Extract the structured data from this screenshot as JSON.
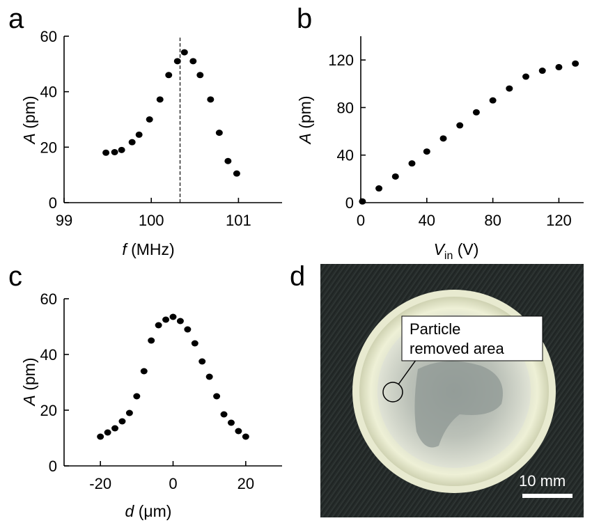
{
  "panels": {
    "a": "a",
    "b": "b",
    "c": "c",
    "d": "d"
  },
  "chart_data": [
    {
      "panel": "a",
      "type": "scatter",
      "xlabel_italic": "f",
      "xlabel_rest": " (MHz)",
      "ylabel_italic": "A",
      "ylabel_rest": " (pm)",
      "xlim": [
        99,
        101.5
      ],
      "ylim": [
        0,
        60
      ],
      "xticks": [
        99,
        100,
        101
      ],
      "xtick_labels": [
        "99",
        "100",
        "101"
      ],
      "yticks": [
        0,
        20,
        40,
        60
      ],
      "ytick_labels": [
        "0",
        "20",
        "40",
        "60"
      ],
      "vline_x": 100.33,
      "x": [
        99.48,
        99.58,
        99.66,
        99.78,
        99.86,
        99.98,
        100.1,
        100.2,
        100.3,
        100.38,
        100.48,
        100.56,
        100.68,
        100.78,
        100.88,
        100.98
      ],
      "y": [
        18,
        18.2,
        19,
        21.8,
        24.5,
        30,
        37.2,
        46,
        51,
        54.2,
        51,
        46,
        37.2,
        25.2,
        15,
        10.5
      ]
    },
    {
      "panel": "b",
      "type": "scatter",
      "xlabel_italic": "V",
      "xlabel_sub": "in",
      "xlabel_rest": " (V)",
      "ylabel_italic": "A",
      "ylabel_rest": " (pm)",
      "xlim": [
        0,
        135
      ],
      "ylim": [
        0,
        140
      ],
      "xticks": [
        0,
        40,
        80,
        120
      ],
      "xtick_labels": [
        "0",
        "40",
        "80",
        "120"
      ],
      "yticks": [
        0,
        40,
        80,
        120
      ],
      "ytick_labels": [
        "0",
        "40",
        "80",
        "120"
      ],
      "x": [
        1,
        11,
        21,
        31,
        40,
        50,
        60,
        70,
        80,
        90,
        100,
        110,
        120,
        130
      ],
      "y": [
        1,
        12,
        22,
        33,
        43,
        54,
        65,
        76,
        86,
        96,
        106,
        111,
        114,
        117
      ]
    },
    {
      "panel": "c",
      "type": "scatter",
      "xlabel_italic": "d",
      "xlabel_rest": " (μm)",
      "ylabel_italic": "A",
      "ylabel_rest": " (pm)",
      "xlim": [
        -30,
        30
      ],
      "ylim": [
        0,
        60
      ],
      "xticks": [
        -20,
        0,
        20
      ],
      "xtick_labels": [
        "-20",
        "0",
        "20"
      ],
      "yticks": [
        0,
        20,
        40,
        60
      ],
      "ytick_labels": [
        "0",
        "20",
        "40",
        "60"
      ],
      "x": [
        -20,
        -18,
        -16,
        -14,
        -12,
        -10,
        -8,
        -6,
        -4,
        -2,
        0,
        2,
        4,
        6,
        8,
        10,
        12,
        14,
        16,
        18,
        20
      ],
      "y": [
        10.5,
        12,
        13.5,
        16,
        19,
        25,
        34,
        45,
        50.5,
        52.5,
        53.5,
        52,
        49,
        44,
        37.5,
        32,
        25,
        18.5,
        15.5,
        12.5,
        10.5
      ]
    }
  ],
  "photo": {
    "callout_text_line1": "Particle",
    "callout_text_line2": "removed area",
    "scale_bar_label": "10 mm",
    "background_color": "#252b2a",
    "dish_color": "#e6e8cd"
  }
}
